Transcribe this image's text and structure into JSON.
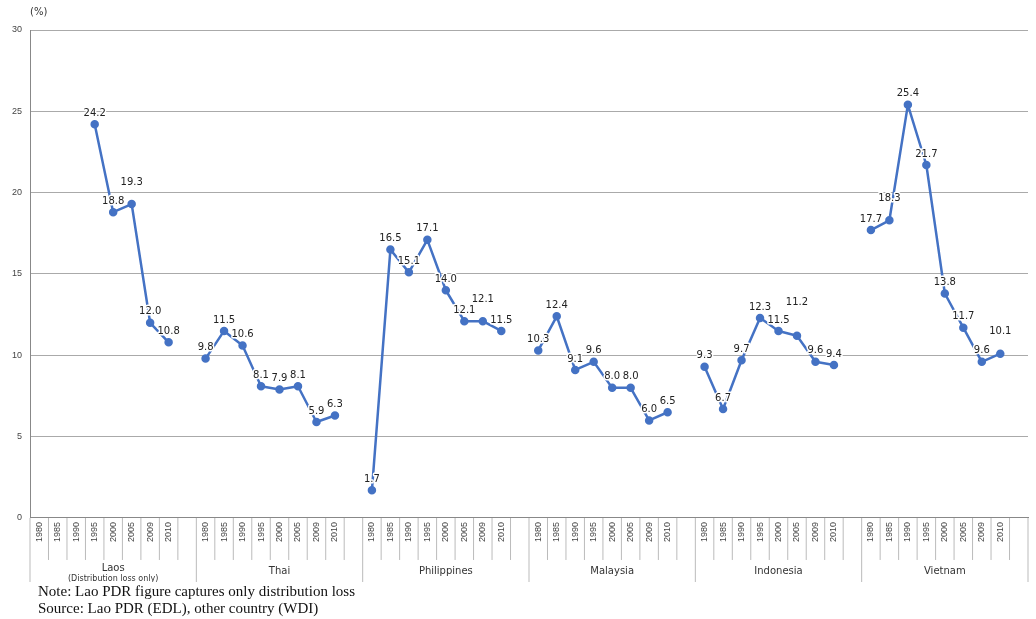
{
  "chart_data": {
    "type": "line",
    "ylabel": "(%)",
    "categories": [
      "1980",
      "1985",
      "1990",
      "1995",
      "2000",
      "2005",
      "2009",
      "2010",
      null,
      "1980",
      "1985",
      "1990",
      "1995",
      "2000",
      "2005",
      "2009",
      "2010",
      null,
      "1980",
      "1985",
      "1990",
      "1995",
      "2000",
      "2005",
      "2009",
      "2010",
      null,
      "1980",
      "1985",
      "1990",
      "1995",
      "2000",
      "2005",
      "2009",
      "2010",
      null,
      "1980",
      "1985",
      "1990",
      "1995",
      "2000",
      "2005",
      "2009",
      "2010",
      null,
      "1980",
      "1985",
      "1990",
      "1995",
      "2000",
      "2005",
      "2009",
      "2010",
      null
    ],
    "series": [
      {
        "color": "#4472c4",
        "values": [
          null,
          null,
          null,
          24.2,
          18.8,
          19.3,
          12.0,
          10.8,
          null,
          9.8,
          11.5,
          10.6,
          8.1,
          7.9,
          8.1,
          5.9,
          6.3,
          null,
          1.7,
          16.5,
          15.1,
          17.1,
          14.0,
          12.1,
          12.1,
          11.5,
          null,
          10.3,
          12.4,
          9.1,
          9.6,
          8.0,
          8.0,
          6.0,
          6.5,
          null,
          9.3,
          6.7,
          9.7,
          12.3,
          11.5,
          11.2,
          9.6,
          9.4,
          null,
          17.7,
          18.3,
          25.4,
          21.7,
          13.8,
          11.7,
          9.6,
          10.1,
          null
        ],
        "value_labels": [
          null,
          null,
          null,
          "24.2",
          "18.8",
          "19.3",
          "12.0",
          "10.8",
          null,
          "9.8",
          "11.5",
          "10.6",
          "8.1",
          "7.9",
          "8.1",
          "5.9",
          "6.3",
          null,
          "1.7",
          "16.5",
          "15.1",
          "17.1",
          "14.0",
          "12.1",
          "12.1",
          "11.5",
          null,
          "10.3",
          "12.4",
          "9.1",
          "9.6",
          "8.0",
          "8.0",
          "6.0",
          "6.5",
          null,
          "9.3",
          "6.7",
          "9.7",
          "12.3",
          "11.5",
          "11.2",
          "9.6",
          "9.4",
          null,
          "17.7",
          "18.3",
          "25.4",
          "21.7",
          "13.8",
          "11.7",
          "9.6",
          "10.1",
          null
        ]
      }
    ],
    "ylim": [
      0,
      30
    ],
    "yticks": [
      0,
      5,
      10,
      15,
      20,
      25,
      30
    ],
    "grid": "y",
    "legend": false,
    "marker": "circle",
    "line_style": "solid",
    "annotations": [
      "Laos (Distribution loss only)",
      "Thai",
      "Philippines",
      "Malaysia",
      "Indonesia",
      "Vietnam",
      "Note: Lao PDR figure captures only distribution loss",
      "Source: Lao PDR (EDL), other country (WDI)"
    ]
  }
}
